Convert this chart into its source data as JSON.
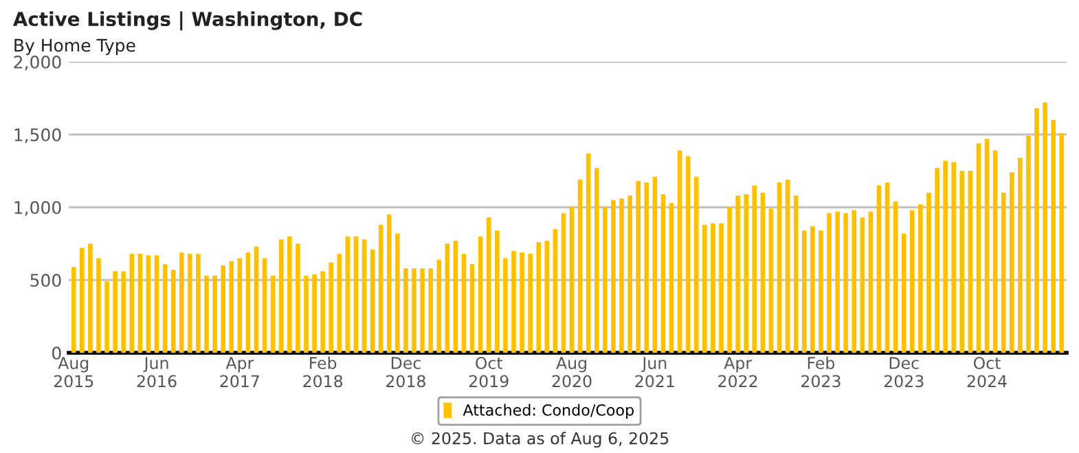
{
  "chart_data": {
    "type": "bar",
    "title": "Active Listings | Washington, DC",
    "subtitle": "By Home Type",
    "categories": [
      "Aug\n2015",
      null,
      null,
      null,
      null,
      null,
      null,
      null,
      null,
      null,
      "Jun\n2016",
      null,
      null,
      null,
      null,
      null,
      null,
      null,
      null,
      null,
      "Apr\n2017",
      null,
      null,
      null,
      null,
      null,
      null,
      null,
      null,
      null,
      "Feb\n2018",
      null,
      null,
      null,
      null,
      null,
      null,
      null,
      null,
      null,
      "Dec\n2018",
      null,
      null,
      null,
      null,
      null,
      null,
      null,
      null,
      null,
      "Oct\n2019",
      null,
      null,
      null,
      null,
      null,
      null,
      null,
      null,
      null,
      "Aug\n2020",
      null,
      null,
      null,
      null,
      null,
      null,
      null,
      null,
      null,
      "Jun\n2021",
      null,
      null,
      null,
      null,
      null,
      null,
      null,
      null,
      null,
      "Apr\n2022",
      null,
      null,
      null,
      null,
      null,
      null,
      null,
      null,
      null,
      "Feb\n2023",
      null,
      null,
      null,
      null,
      null,
      null,
      null,
      null,
      null,
      "Dec\n2023",
      null,
      null,
      null,
      null,
      null,
      null,
      null,
      null,
      null,
      "Oct\n2024",
      null,
      null,
      null,
      null,
      null,
      null,
      null,
      null,
      null
    ],
    "series": [
      {
        "name": "Attached: Condo/Coop",
        "color": "#ffc000",
        "values": [
          590,
          720,
          750,
          650,
          490,
          560,
          560,
          680,
          680,
          670,
          670,
          610,
          570,
          690,
          680,
          680,
          530,
          530,
          600,
          630,
          650,
          690,
          730,
          650,
          530,
          780,
          800,
          750,
          530,
          540,
          560,
          620,
          680,
          800,
          800,
          780,
          710,
          880,
          950,
          820,
          580,
          580,
          580,
          580,
          640,
          750,
          770,
          680,
          610,
          800,
          930,
          840,
          650,
          700,
          690,
          680,
          760,
          770,
          850,
          960,
          1000,
          1190,
          1370,
          1270,
          1000,
          1050,
          1060,
          1080,
          1180,
          1170,
          1210,
          1090,
          1030,
          1390,
          1350,
          1210,
          880,
          890,
          890,
          1000,
          1080,
          1090,
          1150,
          1100,
          990,
          1170,
          1190,
          1080,
          840,
          870,
          840,
          960,
          970,
          960,
          980,
          930,
          970,
          1150,
          1170,
          1040,
          820,
          980,
          1020,
          1100,
          1270,
          1320,
          1310,
          1250,
          1250,
          1440,
          1470,
          1390,
          1100,
          1240,
          1340,
          1490,
          1680,
          1720,
          1600,
          1510
        ]
      }
    ],
    "ylim": [
      0,
      2000
    ],
    "yticks": [
      0,
      {
        "value": 500,
        "label": "500"
      },
      {
        "value": 1000,
        "label": "1,000"
      },
      {
        "value": 1500,
        "label": "1,500"
      },
      {
        "value": 2000,
        "label": "2,000"
      }
    ],
    "grid": "y",
    "legend": "bottom",
    "annotations": [
      "© 2025. Data as of Aug 6, 2025"
    ]
  }
}
